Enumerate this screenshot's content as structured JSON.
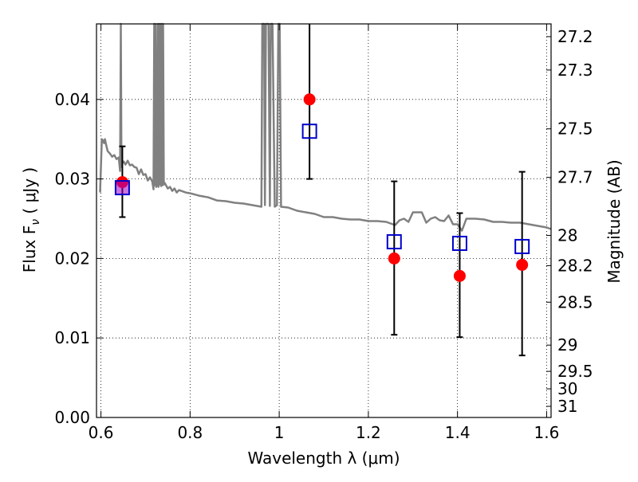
{
  "chart_data": {
    "type": "scatter",
    "xlabel": "Wavelength  λ (μm)",
    "ylabel": "Flux  F",
    "ylabel_subscript": "ν",
    "ylabel_unit": " ( μJy )",
    "y2label": "Magnitude (AB)",
    "xlim": [
      0.59,
      1.61
    ],
    "ylim": [
      0.0,
      0.0495
    ],
    "grid": true,
    "x_ticks": [
      0.6,
      0.8,
      1.0,
      1.2,
      1.4,
      1.6
    ],
    "x_tick_labels": [
      "0.6",
      "0.8",
      "1",
      "1.2",
      "1.4",
      "1.6"
    ],
    "y_ticks": [
      0.0,
      0.01,
      0.02,
      0.03,
      0.04
    ],
    "y_tick_labels": [
      "0.00",
      "0.01",
      "0.02",
      "0.03",
      "0.04"
    ],
    "y2_ticks": [
      {
        "flux": 0.0479,
        "label": "27.2"
      },
      {
        "flux": 0.0437,
        "label": "27.3"
      },
      {
        "flux": 0.0363,
        "label": "27.5"
      },
      {
        "flux": 0.0302,
        "label": "27.7"
      },
      {
        "flux": 0.0229,
        "label": "28"
      },
      {
        "flux": 0.0191,
        "label": "28.2"
      },
      {
        "flux": 0.0145,
        "label": "28.5"
      },
      {
        "flux": 0.0091,
        "label": "29"
      },
      {
        "flux": 0.0058,
        "label": "29.5"
      },
      {
        "flux": 0.0036,
        "label": "30"
      },
      {
        "flux": 0.0014,
        "label": "31"
      }
    ],
    "series": [
      {
        "kind": "model-spectrum",
        "color": "#808080",
        "x": [
          0.598,
          0.602,
          0.605,
          0.607,
          0.609,
          0.612,
          0.615,
          0.62,
          0.625,
          0.63,
          0.635,
          0.64,
          0.643,
          0.6445,
          0.646,
          0.648,
          0.651,
          0.655,
          0.66,
          0.665,
          0.67,
          0.675,
          0.68,
          0.685,
          0.69,
          0.695,
          0.7,
          0.705,
          0.71,
          0.715,
          0.718,
          0.7195,
          0.721,
          0.7225,
          0.724,
          0.726,
          0.7275,
          0.729,
          0.7305,
          0.732,
          0.7335,
          0.735,
          0.7365,
          0.738,
          0.7395,
          0.741,
          0.743,
          0.746,
          0.75,
          0.755,
          0.76,
          0.765,
          0.77,
          0.775,
          0.78,
          0.79,
          0.8,
          0.82,
          0.84,
          0.86,
          0.88,
          0.9,
          0.92,
          0.94,
          0.95,
          0.96,
          0.962,
          0.966,
          0.968,
          0.97,
          0.976,
          0.979,
          0.981,
          0.985,
          0.99,
          0.995,
          0.998,
          1.001,
          1.004,
          1.02,
          1.04,
          1.06,
          1.08,
          1.1,
          1.12,
          1.14,
          1.16,
          1.18,
          1.2,
          1.22,
          1.24,
          1.25,
          1.26,
          1.27,
          1.28,
          1.29,
          1.3,
          1.31,
          1.32,
          1.33,
          1.34,
          1.35,
          1.36,
          1.37,
          1.38,
          1.39,
          1.4,
          1.41,
          1.42,
          1.43,
          1.44,
          1.46,
          1.48,
          1.5,
          1.52,
          1.54,
          1.56,
          1.58,
          1.6,
          1.61
        ],
        "y": [
          0.0283,
          0.035,
          0.0348,
          0.0345,
          0.035,
          0.0342,
          0.0335,
          0.0332,
          0.0328,
          0.033,
          0.0325,
          0.0327,
          0.031,
          0.0495,
          0.0315,
          0.032,
          0.0322,
          0.0318,
          0.0323,
          0.0317,
          0.0318,
          0.0315,
          0.0314,
          0.0306,
          0.0312,
          0.0305,
          0.0306,
          0.0298,
          0.0302,
          0.0297,
          0.0287,
          0.0495,
          0.0292,
          0.0495,
          0.029,
          0.0295,
          0.0495,
          0.029,
          0.0495,
          0.0293,
          0.0495,
          0.0291,
          0.0495,
          0.0292,
          0.0495,
          0.0293,
          0.0295,
          0.0292,
          0.0288,
          0.029,
          0.0285,
          0.0288,
          0.0283,
          0.0286,
          0.0285,
          0.0283,
          0.0282,
          0.0279,
          0.0277,
          0.0273,
          0.0272,
          0.027,
          0.0269,
          0.0267,
          0.0266,
          0.0265,
          0.0495,
          0.0495,
          0.0267,
          0.0495,
          0.0495,
          0.0266,
          0.0495,
          0.0495,
          0.0265,
          0.0267,
          0.0495,
          0.0495,
          0.0265,
          0.0264,
          0.026,
          0.0258,
          0.0256,
          0.0252,
          0.0252,
          0.025,
          0.0249,
          0.0249,
          0.0247,
          0.0247,
          0.0246,
          0.0244,
          0.0242,
          0.0248,
          0.025,
          0.0246,
          0.0258,
          0.0258,
          0.0258,
          0.0245,
          0.025,
          0.0252,
          0.0248,
          0.0247,
          0.0254,
          0.0243,
          0.0243,
          0.0235,
          0.025,
          0.025,
          0.025,
          0.0249,
          0.0246,
          0.0246,
          0.0245,
          0.0245,
          0.0243,
          0.0241,
          0.0239,
          0.0237
        ]
      },
      {
        "kind": "model-photometry",
        "marker": "filled-circle",
        "color": "#ff0000",
        "x": [
          0.648,
          1.068,
          1.258,
          1.405,
          1.545
        ],
        "y": [
          0.0296,
          0.04,
          0.02,
          0.0178,
          0.0192
        ]
      },
      {
        "kind": "observed-photometry",
        "marker": "open-square",
        "color": "#0000cc",
        "x": [
          0.648,
          1.068,
          1.258,
          1.405,
          1.545
        ],
        "y": [
          0.0289,
          0.036,
          0.0221,
          0.0219,
          0.0215
        ],
        "yerr_low": [
          0.0252,
          0.03,
          0.0104,
          0.0101,
          0.0078
        ],
        "yerr_high": [
          0.0341,
          0.0495,
          0.0297,
          0.0257,
          0.0309
        ]
      }
    ]
  }
}
